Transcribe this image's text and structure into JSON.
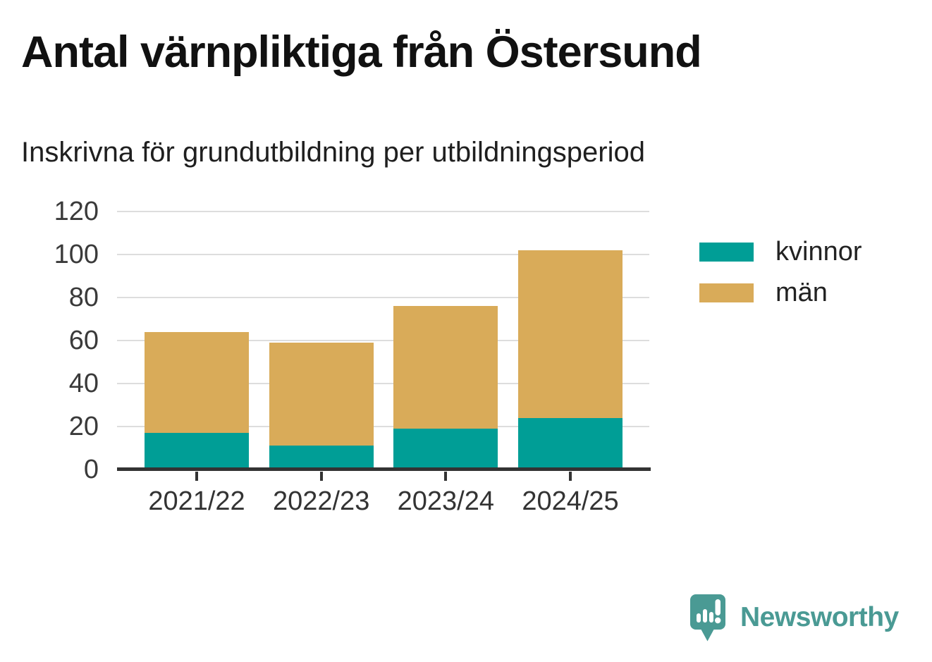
{
  "title": "Antal värnpliktiga från Östersund",
  "subtitle": "Inskrivna för grundutbildning per utbildningsperiod",
  "logo": {
    "brand": "Newsworthy",
    "icon": "newsworthy-speech-bubble-chart-icon",
    "color": "#4a9a94"
  },
  "chart_data": {
    "type": "bar",
    "stacked": true,
    "title": "Antal värnpliktiga från Östersund",
    "subtitle": "Inskrivna för grundutbildning per utbildningsperiod",
    "categories": [
      "2021/22",
      "2022/23",
      "2023/24",
      "2024/25"
    ],
    "series": [
      {
        "name": "kvinnor",
        "color": "#009e96",
        "values": [
          17,
          11,
          19,
          24
        ]
      },
      {
        "name": "män",
        "color": "#d9ab59",
        "values": [
          47,
          48,
          57,
          78
        ]
      }
    ],
    "stack_totals": [
      64,
      59,
      76,
      102
    ],
    "xlabel": "",
    "ylabel": "",
    "ylim": [
      0,
      120
    ],
    "yticks": [
      0,
      20,
      40,
      60,
      80,
      100,
      120
    ],
    "grid": true,
    "legend_position": "right",
    "axis_color": "#333333",
    "grid_color": "#dddddd",
    "tick_label_color": "#3a3a3a"
  }
}
